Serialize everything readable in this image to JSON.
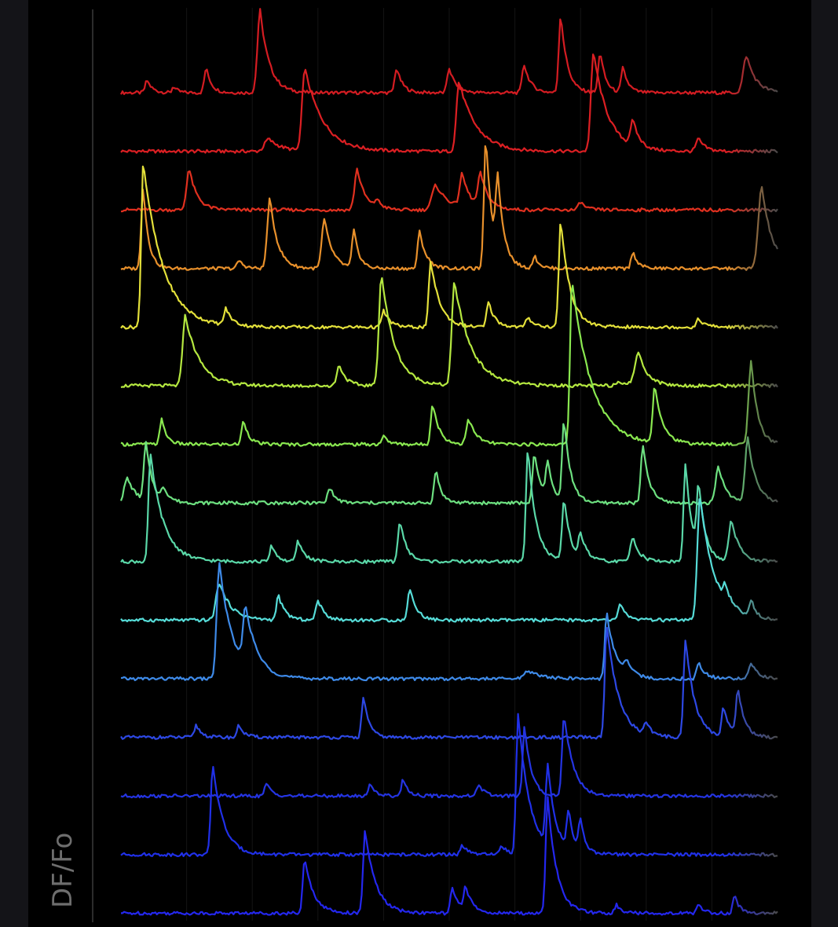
{
  "chart_data": {
    "type": "line",
    "title": "",
    "xlabel": "",
    "ylabel": "DF/Fo",
    "grid": true,
    "legend": "none",
    "stacked_offset_traces": true,
    "x_range": [
      0,
      1000
    ],
    "fade_color": "#4a4a4a",
    "series": [
      {
        "color": "#d41c22",
        "peaks": [
          [
            40,
            0.15,
            3,
            8
          ],
          [
            80,
            0.08,
            2,
            6
          ],
          [
            130,
            0.3,
            3,
            8
          ],
          [
            212,
            1.0,
            4,
            14
          ],
          [
            420,
            0.3,
            3,
            9
          ],
          [
            500,
            0.3,
            3,
            10
          ],
          [
            614,
            0.35,
            3,
            10
          ],
          [
            670,
            0.95,
            3,
            10
          ],
          [
            730,
            0.5,
            3,
            8
          ],
          [
            765,
            0.3,
            3,
            8
          ],
          [
            953,
            0.45,
            5,
            14
          ]
        ]
      },
      {
        "color": "#dc1f23",
        "peaks": [
          [
            280,
            1.0,
            4,
            28
          ],
          [
            515,
            0.85,
            4,
            26
          ],
          [
            780,
            0.3,
            4,
            10
          ],
          [
            720,
            1.2,
            4,
            22
          ],
          [
            880,
            0.15,
            4,
            10
          ],
          [
            225,
            0.15,
            6,
            20
          ]
        ]
      },
      {
        "color": "#e0301f",
        "peaks": [
          [
            104,
            0.5,
            4,
            12
          ],
          [
            360,
            0.5,
            4,
            12
          ],
          [
            480,
            0.3,
            6,
            20
          ],
          [
            520,
            0.4,
            4,
            12
          ],
          [
            548,
            0.4,
            4,
            12
          ],
          [
            390,
            0.1,
            3,
            8
          ],
          [
            700,
            0.1,
            3,
            8
          ]
        ]
      },
      {
        "color": "#e8902b",
        "peaks": [
          [
            34,
            1.0,
            3,
            8
          ],
          [
            227,
            0.85,
            4,
            12
          ],
          [
            310,
            0.6,
            4,
            12
          ],
          [
            355,
            0.45,
            3,
            8
          ],
          [
            455,
            0.45,
            3,
            10
          ],
          [
            556,
            1.6,
            3,
            10
          ],
          [
            574,
            0.9,
            3,
            10
          ],
          [
            180,
            0.1,
            3,
            8
          ],
          [
            630,
            0.15,
            3,
            8
          ],
          [
            780,
            0.2,
            3,
            8
          ],
          [
            976,
            1.0,
            5,
            16
          ]
        ]
      },
      {
        "color": "#e3e03a",
        "peaks": [
          [
            34,
            2.0,
            3,
            30
          ],
          [
            160,
            0.2,
            3,
            10
          ],
          [
            400,
            0.2,
            3,
            10
          ],
          [
            472,
            0.8,
            3,
            14
          ],
          [
            560,
            0.3,
            3,
            10
          ],
          [
            670,
            1.3,
            3,
            14
          ],
          [
            620,
            0.12,
            3,
            10
          ],
          [
            880,
            0.1,
            3,
            10
          ]
        ]
      },
      {
        "color": "#b5e840",
        "peaks": [
          [
            98,
            0.85,
            4,
            22
          ],
          [
            333,
            0.25,
            4,
            10
          ],
          [
            397,
            1.35,
            4,
            20
          ],
          [
            508,
            1.25,
            4,
            26
          ],
          [
            788,
            0.4,
            5,
            14
          ],
          [
            760,
            0.05,
            6,
            20
          ]
        ]
      },
      {
        "color": "#8ae850",
        "peaks": [
          [
            62,
            0.3,
            3,
            8
          ],
          [
            187,
            0.3,
            3,
            8
          ],
          [
            475,
            0.5,
            3,
            10
          ],
          [
            530,
            0.3,
            4,
            12
          ],
          [
            687,
            2.0,
            3,
            30
          ],
          [
            813,
            0.7,
            3,
            12
          ],
          [
            960,
            1.0,
            4,
            10
          ],
          [
            400,
            0.1,
            3,
            8
          ]
        ]
      },
      {
        "color": "#6de080",
        "peaks": [
          [
            10,
            0.3,
            5,
            14
          ],
          [
            38,
            0.7,
            3,
            10
          ],
          [
            65,
            0.15,
            3,
            10
          ],
          [
            318,
            0.2,
            3,
            8
          ],
          [
            480,
            0.4,
            3,
            8
          ],
          [
            630,
            0.6,
            3,
            10
          ],
          [
            650,
            0.45,
            3,
            8
          ],
          [
            675,
            1.0,
            3,
            10
          ],
          [
            795,
            0.7,
            3,
            10
          ],
          [
            910,
            0.45,
            4,
            12
          ],
          [
            955,
            0.8,
            4,
            12
          ]
        ]
      },
      {
        "color": "#5ad8a8",
        "peaks": [
          [
            45,
            1.3,
            3,
            20
          ],
          [
            270,
            0.25,
            3,
            10
          ],
          [
            425,
            0.5,
            3,
            10
          ],
          [
            620,
            1.4,
            3,
            12
          ],
          [
            675,
            0.75,
            3,
            10
          ],
          [
            700,
            0.3,
            3,
            10
          ],
          [
            780,
            0.3,
            4,
            10
          ],
          [
            860,
            1.2,
            3,
            10
          ],
          [
            880,
            0.8,
            3,
            10
          ],
          [
            230,
            0.2,
            3,
            8
          ],
          [
            930,
            0.5,
            4,
            12
          ]
        ]
      },
      {
        "color": "#56dcd8",
        "peaks": [
          [
            150,
            0.45,
            5,
            18
          ],
          [
            240,
            0.3,
            3,
            10
          ],
          [
            300,
            0.25,
            3,
            10
          ],
          [
            440,
            0.4,
            3,
            10
          ],
          [
            760,
            0.2,
            3,
            10
          ],
          [
            882,
            1.5,
            4,
            22
          ],
          [
            920,
            0.2,
            3,
            10
          ],
          [
            960,
            0.2,
            3,
            8
          ]
        ]
      },
      {
        "color": "#3e8ae8",
        "peaks": [
          [
            150,
            1.4,
            4,
            20
          ],
          [
            190,
            0.7,
            4,
            18
          ],
          [
            740,
            0.8,
            3,
            14
          ],
          [
            770,
            0.15,
            3,
            10
          ],
          [
            880,
            0.2,
            3,
            10
          ],
          [
            620,
            0.1,
            6,
            20
          ],
          [
            960,
            0.2,
            4,
            10
          ]
        ]
      },
      {
        "color": "#2d48e4",
        "peaks": [
          [
            115,
            0.15,
            3,
            8
          ],
          [
            180,
            0.15,
            3,
            8
          ],
          [
            370,
            0.5,
            3,
            8
          ],
          [
            740,
            1.35,
            3,
            18
          ],
          [
            800,
            0.15,
            3,
            8
          ],
          [
            860,
            1.2,
            3,
            14
          ],
          [
            918,
            0.35,
            3,
            10
          ],
          [
            940,
            0.55,
            3,
            10
          ]
        ]
      },
      {
        "color": "#2434e2",
        "peaks": [
          [
            222,
            0.15,
            3,
            8
          ],
          [
            380,
            0.15,
            3,
            8
          ],
          [
            430,
            0.2,
            3,
            8
          ],
          [
            615,
            0.85,
            3,
            10
          ],
          [
            675,
            1.0,
            3,
            14
          ],
          [
            545,
            0.15,
            3,
            8
          ]
        ]
      },
      {
        "color": "#2030e8",
        "peaks": [
          [
            140,
            1.1,
            3,
            16
          ],
          [
            605,
            1.7,
            3,
            18
          ],
          [
            650,
            0.95,
            3,
            12
          ],
          [
            682,
            0.45,
            3,
            8
          ],
          [
            700,
            0.35,
            3,
            8
          ],
          [
            520,
            0.12,
            3,
            8
          ],
          [
            580,
            0.12,
            3,
            8
          ]
        ]
      },
      {
        "color": "#2427ee",
        "peaks": [
          [
            280,
            0.65,
            3,
            14
          ],
          [
            372,
            1.0,
            3,
            16
          ],
          [
            505,
            0.3,
            3,
            10
          ],
          [
            525,
            0.3,
            3,
            10
          ],
          [
            650,
            1.4,
            3,
            14
          ],
          [
            755,
            0.1,
            3,
            8
          ],
          [
            935,
            0.2,
            3,
            8
          ],
          [
            880,
            0.1,
            3,
            8
          ]
        ]
      }
    ]
  }
}
